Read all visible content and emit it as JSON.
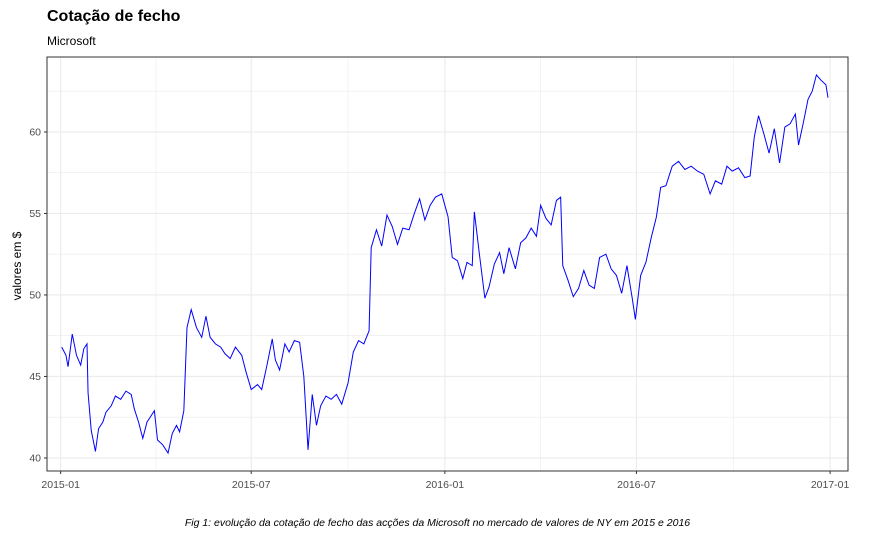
{
  "title": "Cotação de fecho",
  "subtitle": "Microsoft",
  "caption": "Fig 1: evolução da cotação de fecho das acções da Microsoft no mercado de valores de NY em 2015 e 2016",
  "colors": {
    "line": "#0000ff",
    "grid": "#ebebeb",
    "panel_border": "#333333",
    "tick_text": "#4d4d4d"
  },
  "chart_data": {
    "type": "line",
    "title": "Cotação de fecho",
    "subtitle": "Microsoft",
    "xlabel": "",
    "ylabel": "valores em $",
    "ylim": [
      39.2,
      64.6
    ],
    "xlim": [
      "2014-12-19",
      "2017-01-18"
    ],
    "y_ticks": [
      40,
      45,
      50,
      55,
      60
    ],
    "x_ticks": [
      "2015-01-01",
      "2015-07-01",
      "2016-01-01",
      "2016-07-01",
      "2017-01-01"
    ],
    "x_tick_labels": [
      "2015-01",
      "2015-07",
      "2016-01",
      "2016-07",
      "2017-01"
    ],
    "grid": true,
    "series": [
      {
        "points": [
          [
            "2015-01-02",
            46.8
          ],
          [
            "2015-01-06",
            46.3
          ],
          [
            "2015-01-08",
            45.6
          ],
          [
            "2015-01-12",
            47.6
          ],
          [
            "2015-01-16",
            46.3
          ],
          [
            "2015-01-20",
            45.7
          ],
          [
            "2015-01-23",
            46.7
          ],
          [
            "2015-01-26",
            47.0
          ],
          [
            "2015-01-27",
            44.0
          ],
          [
            "2015-01-30",
            41.7
          ],
          [
            "2015-02-03",
            40.4
          ],
          [
            "2015-02-06",
            41.8
          ],
          [
            "2015-02-10",
            42.2
          ],
          [
            "2015-02-13",
            42.8
          ],
          [
            "2015-02-18",
            43.2
          ],
          [
            "2015-02-22",
            43.8
          ],
          [
            "2015-02-27",
            43.6
          ],
          [
            "2015-03-04",
            44.1
          ],
          [
            "2015-03-09",
            43.9
          ],
          [
            "2015-03-12",
            43.0
          ],
          [
            "2015-03-16",
            42.2
          ],
          [
            "2015-03-20",
            41.2
          ],
          [
            "2015-03-24",
            42.2
          ],
          [
            "2015-03-27",
            42.5
          ],
          [
            "2015-03-31",
            42.9
          ],
          [
            "2015-04-03",
            41.1
          ],
          [
            "2015-04-08",
            40.8
          ],
          [
            "2015-04-13",
            40.3
          ],
          [
            "2015-04-17",
            41.5
          ],
          [
            "2015-04-21",
            42.0
          ],
          [
            "2015-04-24",
            41.6
          ],
          [
            "2015-04-28",
            42.9
          ],
          [
            "2015-05-01",
            48.0
          ],
          [
            "2015-05-05",
            49.1
          ],
          [
            "2015-05-10",
            48.0
          ],
          [
            "2015-05-15",
            47.4
          ],
          [
            "2015-05-19",
            48.7
          ],
          [
            "2015-05-23",
            47.4
          ],
          [
            "2015-05-28",
            47.0
          ],
          [
            "2015-06-02",
            46.8
          ],
          [
            "2015-06-06",
            46.4
          ],
          [
            "2015-06-11",
            46.1
          ],
          [
            "2015-06-16",
            46.8
          ],
          [
            "2015-06-22",
            46.3
          ],
          [
            "2015-06-26",
            45.3
          ],
          [
            "2015-07-01",
            44.2
          ],
          [
            "2015-07-07",
            44.5
          ],
          [
            "2015-07-11",
            44.2
          ],
          [
            "2015-07-16",
            45.7
          ],
          [
            "2015-07-21",
            47.3
          ],
          [
            "2015-07-24",
            46.0
          ],
          [
            "2015-07-28",
            45.4
          ],
          [
            "2015-08-02",
            47.0
          ],
          [
            "2015-08-06",
            46.5
          ],
          [
            "2015-08-11",
            47.2
          ],
          [
            "2015-08-16",
            47.1
          ],
          [
            "2015-08-20",
            45.0
          ],
          [
            "2015-08-24",
            40.5
          ],
          [
            "2015-08-28",
            43.9
          ],
          [
            "2015-09-01",
            42.0
          ],
          [
            "2015-09-05",
            43.2
          ],
          [
            "2015-09-10",
            43.8
          ],
          [
            "2015-09-15",
            43.6
          ],
          [
            "2015-09-20",
            43.9
          ],
          [
            "2015-09-25",
            43.3
          ],
          [
            "2015-10-01",
            44.6
          ],
          [
            "2015-10-06",
            46.5
          ],
          [
            "2015-10-11",
            47.2
          ],
          [
            "2015-10-16",
            47.0
          ],
          [
            "2015-10-21",
            47.8
          ],
          [
            "2015-10-23",
            52.9
          ],
          [
            "2015-10-28",
            54.0
          ],
          [
            "2015-11-02",
            53.0
          ],
          [
            "2015-11-07",
            54.9
          ],
          [
            "2015-11-12",
            54.2
          ],
          [
            "2015-11-17",
            53.1
          ],
          [
            "2015-11-22",
            54.1
          ],
          [
            "2015-11-28",
            54.0
          ],
          [
            "2015-12-03",
            55.0
          ],
          [
            "2015-12-08",
            55.9
          ],
          [
            "2015-12-13",
            54.6
          ],
          [
            "2015-12-18",
            55.5
          ],
          [
            "2015-12-23",
            56.0
          ],
          [
            "2015-12-29",
            56.2
          ],
          [
            "2016-01-04",
            54.8
          ],
          [
            "2016-01-08",
            52.3
          ],
          [
            "2016-01-13",
            52.1
          ],
          [
            "2016-01-18",
            51.0
          ],
          [
            "2016-01-22",
            52.0
          ],
          [
            "2016-01-27",
            51.8
          ],
          [
            "2016-01-29",
            55.1
          ],
          [
            "2016-02-03",
            52.4
          ],
          [
            "2016-02-08",
            49.8
          ],
          [
            "2016-02-12",
            50.5
          ],
          [
            "2016-02-17",
            51.9
          ],
          [
            "2016-02-22",
            52.6
          ],
          [
            "2016-02-26",
            51.3
          ],
          [
            "2016-03-02",
            52.9
          ],
          [
            "2016-03-08",
            51.6
          ],
          [
            "2016-03-13",
            53.2
          ],
          [
            "2016-03-18",
            53.5
          ],
          [
            "2016-03-23",
            54.1
          ],
          [
            "2016-03-28",
            53.6
          ],
          [
            "2016-04-01",
            55.5
          ],
          [
            "2016-04-06",
            54.7
          ],
          [
            "2016-04-11",
            54.3
          ],
          [
            "2016-04-16",
            55.8
          ],
          [
            "2016-04-20",
            56.0
          ],
          [
            "2016-04-22",
            51.8
          ],
          [
            "2016-04-27",
            50.9
          ],
          [
            "2016-05-02",
            49.9
          ],
          [
            "2016-05-07",
            50.4
          ],
          [
            "2016-05-12",
            51.5
          ],
          [
            "2016-05-17",
            50.6
          ],
          [
            "2016-05-22",
            50.4
          ],
          [
            "2016-05-27",
            52.3
          ],
          [
            "2016-06-02",
            52.5
          ],
          [
            "2016-06-07",
            51.6
          ],
          [
            "2016-06-12",
            51.2
          ],
          [
            "2016-06-17",
            50.1
          ],
          [
            "2016-06-22",
            51.8
          ],
          [
            "2016-06-27",
            49.8
          ],
          [
            "2016-06-30",
            48.5
          ],
          [
            "2016-07-05",
            51.2
          ],
          [
            "2016-07-10",
            52.0
          ],
          [
            "2016-07-15",
            53.5
          ],
          [
            "2016-07-20",
            54.8
          ],
          [
            "2016-07-24",
            56.6
          ],
          [
            "2016-07-29",
            56.7
          ],
          [
            "2016-08-04",
            57.9
          ],
          [
            "2016-08-10",
            58.2
          ],
          [
            "2016-08-16",
            57.7
          ],
          [
            "2016-08-22",
            57.9
          ],
          [
            "2016-08-28",
            57.6
          ],
          [
            "2016-09-03",
            57.4
          ],
          [
            "2016-09-09",
            56.2
          ],
          [
            "2016-09-14",
            57.0
          ],
          [
            "2016-09-20",
            56.8
          ],
          [
            "2016-09-25",
            57.9
          ],
          [
            "2016-09-30",
            57.6
          ],
          [
            "2016-10-06",
            57.8
          ],
          [
            "2016-10-12",
            57.2
          ],
          [
            "2016-10-17",
            57.3
          ],
          [
            "2016-10-21",
            59.7
          ],
          [
            "2016-10-25",
            61.0
          ],
          [
            "2016-10-30",
            59.9
          ],
          [
            "2016-11-04",
            58.7
          ],
          [
            "2016-11-09",
            60.2
          ],
          [
            "2016-11-14",
            58.1
          ],
          [
            "2016-11-19",
            60.3
          ],
          [
            "2016-11-24",
            60.5
          ],
          [
            "2016-11-29",
            61.1
          ],
          [
            "2016-12-02",
            59.2
          ],
          [
            "2016-12-07",
            60.7
          ],
          [
            "2016-12-11",
            62.0
          ],
          [
            "2016-12-15",
            62.5
          ],
          [
            "2016-12-19",
            63.5
          ],
          [
            "2016-12-23",
            63.2
          ],
          [
            "2016-12-28",
            62.9
          ],
          [
            "2016-12-30",
            62.1
          ]
        ]
      }
    ]
  }
}
